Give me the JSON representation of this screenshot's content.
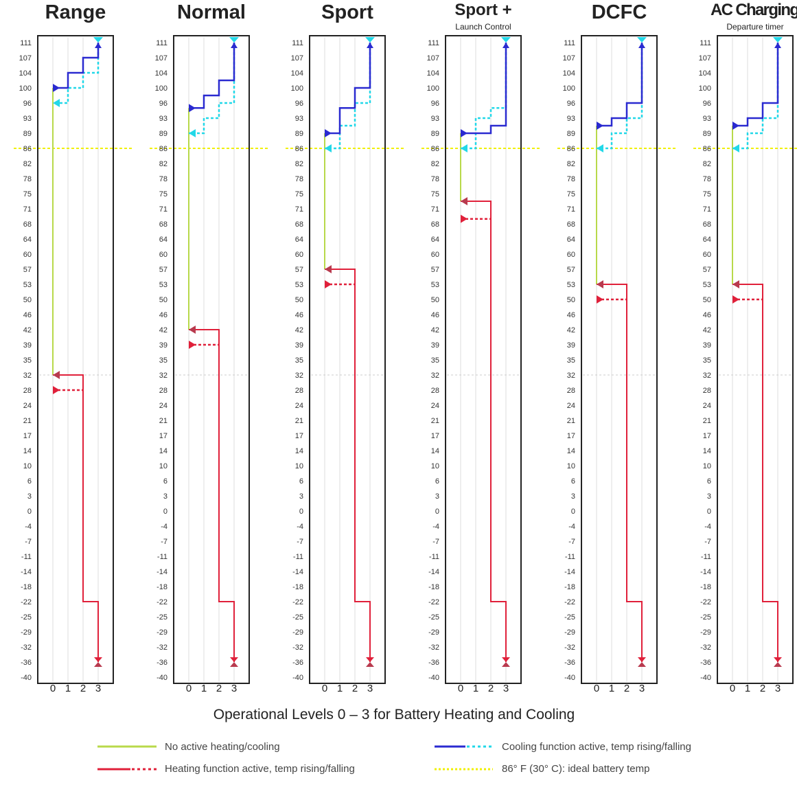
{
  "title": "Operational Levels 0 – 3 for Battery Heating and Cooling",
  "legend": {
    "none": "No active heating/cooling",
    "heating": "Heating function active, temp rising/falling",
    "cooling": "Cooling function active, temp rising/falling",
    "ideal": "86° F (30° C): ideal battery temp"
  },
  "colors": {
    "none": "#b8d94a",
    "heating": "#e0203a",
    "heating_marker": "#b83a4e",
    "cooling": "#2a2ad0",
    "cooling_falling": "#22d8e8",
    "ideal": "#f0f000",
    "frame": "#222222",
    "grid": "#dddddd"
  },
  "y_ticks": [
    "111",
    "107",
    "104",
    "100",
    "96",
    "93",
    "89",
    "86",
    "82",
    "78",
    "75",
    "71",
    "68",
    "64",
    "60",
    "57",
    "53",
    "50",
    "46",
    "42",
    "39",
    "35",
    "32",
    "28",
    "24",
    "21",
    "17",
    "14",
    "10",
    "6",
    "3",
    "0",
    "-4",
    "-7",
    "-11",
    "-14",
    "-18",
    "-22",
    "-25",
    "-29",
    "-32",
    "-36",
    "-40"
  ],
  "x_ticks": [
    "0",
    "1",
    "2",
    "3"
  ],
  "chart_data": [
    {
      "type": "line",
      "title": "Range",
      "subtitle": "",
      "x_levels": [
        0,
        1,
        2,
        3
      ],
      "y_unit": "°F",
      "ylim": [
        -40,
        111
      ],
      "ideal_temp": 86,
      "cooling_rising": [
        [
          0,
          100
        ],
        [
          1,
          100
        ],
        [
          1,
          104
        ],
        [
          2,
          104
        ],
        [
          2,
          107
        ],
        [
          3,
          107
        ],
        [
          3,
          111
        ]
      ],
      "cooling_falling": [
        [
          3,
          111
        ],
        [
          3,
          104
        ],
        [
          2,
          104
        ],
        [
          2,
          100
        ],
        [
          1,
          100
        ],
        [
          1,
          96
        ],
        [
          0,
          96
        ]
      ],
      "no_active": [
        [
          0,
          100
        ],
        [
          0,
          32
        ]
      ],
      "heating_falling": [
        [
          0,
          32
        ],
        [
          2,
          32
        ],
        [
          2,
          -22
        ],
        [
          3,
          -22
        ],
        [
          3,
          -36
        ]
      ],
      "heating_rising": [
        [
          0,
          28
        ],
        [
          2,
          28
        ]
      ]
    },
    {
      "type": "line",
      "title": "Normal",
      "subtitle": "",
      "x_levels": [
        0,
        1,
        2,
        3
      ],
      "y_unit": "°F",
      "ylim": [
        -40,
        111
      ],
      "ideal_temp": 86,
      "cooling_rising": [
        [
          0,
          95
        ],
        [
          1,
          95
        ],
        [
          1,
          98
        ],
        [
          2,
          98
        ],
        [
          2,
          102
        ],
        [
          3,
          102
        ],
        [
          3,
          111
        ]
      ],
      "cooling_falling": [
        [
          3,
          111
        ],
        [
          3,
          96
        ],
        [
          2,
          96
        ],
        [
          2,
          93
        ],
        [
          1,
          93
        ],
        [
          1,
          89
        ],
        [
          0,
          89
        ]
      ],
      "no_active": [
        [
          0,
          95
        ],
        [
          0,
          42
        ]
      ],
      "heating_falling": [
        [
          0,
          42
        ],
        [
          2,
          42
        ],
        [
          2,
          -22
        ],
        [
          3,
          -22
        ],
        [
          3,
          -36
        ]
      ],
      "heating_rising": [
        [
          0,
          39
        ],
        [
          2,
          39
        ]
      ]
    },
    {
      "type": "line",
      "title": "Sport",
      "subtitle": "",
      "x_levels": [
        0,
        1,
        2,
        3
      ],
      "y_unit": "°F",
      "ylim": [
        -40,
        111
      ],
      "ideal_temp": 86,
      "cooling_rising": [
        [
          0,
          89
        ],
        [
          1,
          89
        ],
        [
          1,
          95
        ],
        [
          2,
          95
        ],
        [
          2,
          100
        ],
        [
          3,
          100
        ],
        [
          3,
          111
        ]
      ],
      "cooling_falling": [
        [
          3,
          111
        ],
        [
          3,
          96
        ],
        [
          2,
          96
        ],
        [
          2,
          91
        ],
        [
          1,
          91
        ],
        [
          1,
          86
        ],
        [
          0,
          86
        ]
      ],
      "no_active": [
        [
          0,
          89
        ],
        [
          0,
          57
        ]
      ],
      "heating_falling": [
        [
          0,
          57
        ],
        [
          2,
          57
        ],
        [
          2,
          -22
        ],
        [
          3,
          -22
        ],
        [
          3,
          -36
        ]
      ],
      "heating_rising": [
        [
          0,
          53
        ],
        [
          2,
          53
        ]
      ]
    },
    {
      "type": "line",
      "title": "Sport +",
      "subtitle": "Launch Control",
      "x_levels": [
        0,
        1,
        2,
        3
      ],
      "y_unit": "°F",
      "ylim": [
        -40,
        111
      ],
      "ideal_temp": 86,
      "cooling_rising": [
        [
          0,
          89
        ],
        [
          2,
          89
        ],
        [
          2,
          91
        ],
        [
          3,
          91
        ],
        [
          3,
          111
        ]
      ],
      "cooling_falling": [
        [
          3,
          111
        ],
        [
          3,
          95
        ],
        [
          2,
          95
        ],
        [
          2,
          93
        ],
        [
          1,
          93
        ],
        [
          1,
          86
        ],
        [
          0,
          86
        ]
      ],
      "no_active": [
        [
          0,
          89
        ],
        [
          0,
          73
        ]
      ],
      "heating_falling": [
        [
          0,
          73
        ],
        [
          2,
          73
        ],
        [
          2,
          -22
        ],
        [
          3,
          -22
        ],
        [
          3,
          -36
        ]
      ],
      "heating_rising": [
        [
          0,
          69
        ],
        [
          2,
          69
        ]
      ]
    },
    {
      "type": "line",
      "title": "DCFC",
      "subtitle": "",
      "x_levels": [
        0,
        1,
        2,
        3
      ],
      "y_unit": "°F",
      "ylim": [
        -40,
        111
      ],
      "ideal_temp": 86,
      "cooling_rising": [
        [
          0,
          91
        ],
        [
          1,
          91
        ],
        [
          1,
          93
        ],
        [
          2,
          93
        ],
        [
          2,
          96
        ],
        [
          3,
          96
        ],
        [
          3,
          111
        ]
      ],
      "cooling_falling": [
        [
          3,
          111
        ],
        [
          3,
          93
        ],
        [
          2,
          93
        ],
        [
          2,
          89
        ],
        [
          1,
          89
        ],
        [
          1,
          86
        ],
        [
          0,
          86
        ]
      ],
      "no_active": [
        [
          0,
          91
        ],
        [
          0,
          53
        ]
      ],
      "heating_falling": [
        [
          0,
          53
        ],
        [
          2,
          53
        ],
        [
          2,
          -22
        ],
        [
          3,
          -22
        ],
        [
          3,
          -36
        ]
      ],
      "heating_rising": [
        [
          0,
          50
        ],
        [
          2,
          50
        ]
      ]
    },
    {
      "type": "line",
      "title": "AC Charging",
      "subtitle": "Departure timer",
      "x_levels": [
        0,
        1,
        2,
        3
      ],
      "y_unit": "°F",
      "ylim": [
        -40,
        111
      ],
      "ideal_temp": 86,
      "cooling_rising": [
        [
          0,
          91
        ],
        [
          1,
          91
        ],
        [
          1,
          93
        ],
        [
          2,
          93
        ],
        [
          2,
          96
        ],
        [
          3,
          96
        ],
        [
          3,
          111
        ]
      ],
      "cooling_falling": [
        [
          3,
          111
        ],
        [
          3,
          93
        ],
        [
          2,
          93
        ],
        [
          2,
          89
        ],
        [
          1,
          89
        ],
        [
          1,
          86
        ],
        [
          0,
          86
        ]
      ],
      "no_active": [
        [
          0,
          91
        ],
        [
          0,
          53
        ]
      ],
      "heating_falling": [
        [
          0,
          53
        ],
        [
          2,
          53
        ],
        [
          2,
          -22
        ],
        [
          3,
          -22
        ],
        [
          3,
          -36
        ]
      ],
      "heating_rising": [
        [
          0,
          50
        ],
        [
          2,
          50
        ]
      ]
    }
  ]
}
